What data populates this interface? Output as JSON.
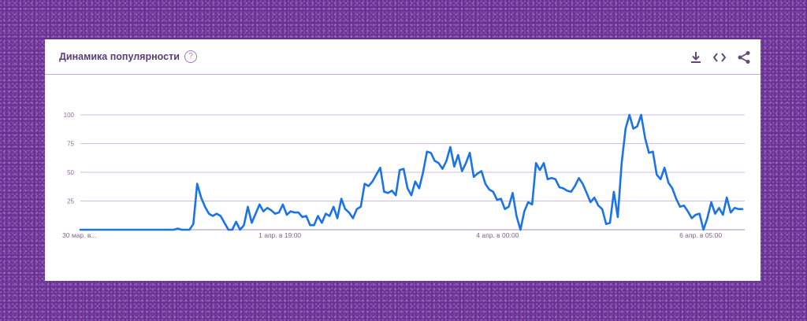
{
  "widget": {
    "title": "Динамика популярности",
    "help_icon": "?",
    "actions": [
      {
        "name": "download-icon"
      },
      {
        "name": "embed-code-icon"
      },
      {
        "name": "share-icon"
      }
    ]
  },
  "chart_data": {
    "type": "line",
    "title": "Динамика популярности",
    "xlabel": "",
    "ylabel": "",
    "ylim": [
      0,
      100
    ],
    "y_ticks": [
      "25",
      "50",
      "75",
      "100"
    ],
    "x_tick_labels": [
      "30 мар. в...",
      "1 апр. в 19:00",
      "4 апр. в 00:00",
      "6 апр. в 05:00"
    ],
    "grid": true,
    "series": [
      {
        "color": "#1a73e8",
        "values": [
          0,
          0,
          0,
          0,
          0,
          0,
          0,
          0,
          0,
          0,
          0,
          0,
          0,
          0,
          0,
          0,
          0,
          0,
          0,
          0,
          0,
          0,
          0,
          0,
          0,
          1,
          0,
          0,
          0,
          5,
          40,
          28,
          20,
          14,
          12,
          14,
          12,
          6,
          0,
          0,
          7,
          0,
          4,
          20,
          6,
          14,
          22,
          16,
          19,
          17,
          14,
          15,
          22,
          13,
          16,
          15,
          15,
          11,
          12,
          4,
          4,
          12,
          6,
          14,
          12,
          20,
          10,
          27,
          18,
          15,
          10,
          18,
          20,
          40,
          38,
          42,
          48,
          54,
          33,
          32,
          34,
          30,
          52,
          53,
          36,
          30,
          42,
          36,
          50,
          68,
          67,
          60,
          58,
          53,
          60,
          72,
          55,
          65,
          51,
          58,
          67,
          46,
          49,
          51,
          40,
          35,
          33,
          26,
          27,
          18,
          20,
          32,
          12,
          0,
          16,
          24,
          22,
          58,
          52,
          58,
          44,
          45,
          44,
          37,
          36,
          34,
          33,
          38,
          45,
          40,
          32,
          24,
          28,
          21,
          18,
          5,
          6,
          33,
          11,
          58,
          88,
          100,
          88,
          90,
          100,
          80,
          67,
          68,
          48,
          44,
          54,
          41,
          36,
          27,
          20,
          21,
          16,
          10,
          13,
          14,
          0,
          10,
          24,
          14,
          19,
          13,
          28,
          15,
          19,
          18,
          18
        ]
      }
    ]
  }
}
